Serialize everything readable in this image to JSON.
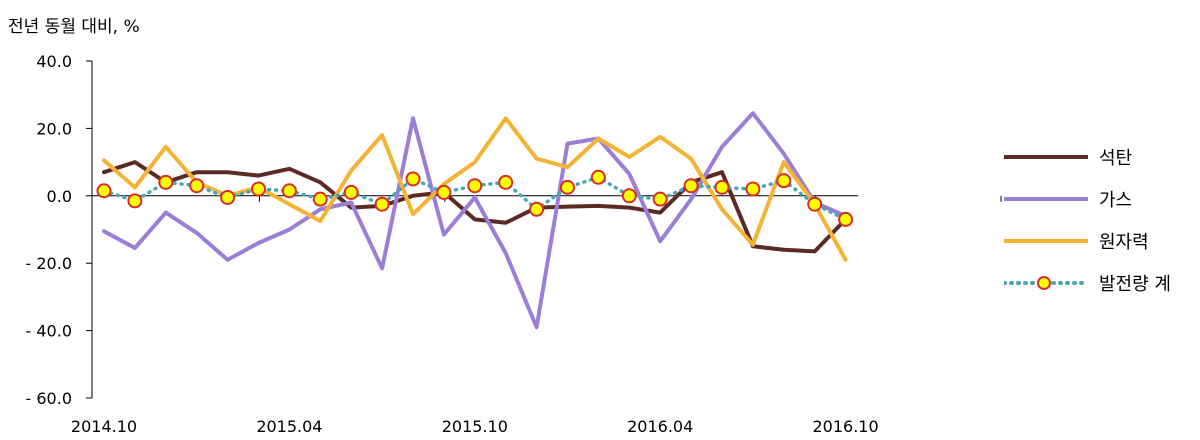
{
  "chart_data": {
    "type": "line",
    "ylabel": "전년 동월 대비, %",
    "ylim": [
      -60,
      40
    ],
    "yticks": [
      40,
      20,
      0,
      -20,
      -40,
      -60
    ],
    "ytick_labels": [
      "40.0",
      "20.0",
      "0.0",
      "- 20.0",
      "- 40.0",
      "- 60.0"
    ],
    "x": [
      "2014.10",
      "2014.11",
      "2014.12",
      "2015.01",
      "2015.02",
      "2015.03",
      "2015.04",
      "2015.05",
      "2015.06",
      "2015.07",
      "2015.08",
      "2015.09",
      "2015.10",
      "2015.11",
      "2015.12",
      "2016.01",
      "2016.02",
      "2016.03",
      "2016.04",
      "2016.05",
      "2016.06",
      "2016.07",
      "2016.08",
      "2016.09",
      "2016.10"
    ],
    "xtick_labels": [
      "2014.10",
      "2015.04",
      "2015.10",
      "2016.04",
      "2016.10"
    ],
    "series": [
      {
        "name": "석탄",
        "color": "#5b2a25",
        "style": "solid",
        "values": [
          7,
          10,
          4,
          7,
          7,
          6,
          8,
          4,
          -3.5,
          -3,
          0,
          1,
          -7,
          -8,
          -3.5,
          -3.2,
          -3,
          -3.5,
          -5,
          4,
          7,
          -15,
          -16,
          -16.5,
          -7
        ]
      },
      {
        "name": "가스",
        "color": "#9b7fd6",
        "style": "solid",
        "values": [
          -10.5,
          -15.5,
          -5,
          -11,
          -19,
          -14,
          -10,
          -4,
          -2,
          -21.5,
          23,
          -11.5,
          -0.5,
          -17,
          -39,
          15.5,
          17,
          6.5,
          -13.5,
          -1,
          14.5,
          24.5,
          12.5,
          -2,
          -6
        ]
      },
      {
        "name": "원자력",
        "color": "#f5b335",
        "style": "solid",
        "values": [
          10.5,
          2.5,
          14.5,
          4,
          0,
          2.5,
          -2.5,
          -7.5,
          7.5,
          18,
          -5.5,
          3.5,
          10,
          23,
          11,
          8.5,
          17,
          11.5,
          17.5,
          11,
          -4,
          -14.5,
          10,
          -2.5,
          -19
        ]
      },
      {
        "name": "발전량 계",
        "color": "#4aa6b6",
        "style": "dotted",
        "values": [
          1.5,
          -1.5,
          4,
          3,
          -0.5,
          2,
          1.5,
          -1,
          1,
          -2.5,
          5,
          1,
          3,
          4,
          -4,
          2.5,
          5.5,
          0,
          -1,
          3,
          2.5,
          2,
          4.5,
          -2.5,
          -7
        ]
      }
    ]
  }
}
